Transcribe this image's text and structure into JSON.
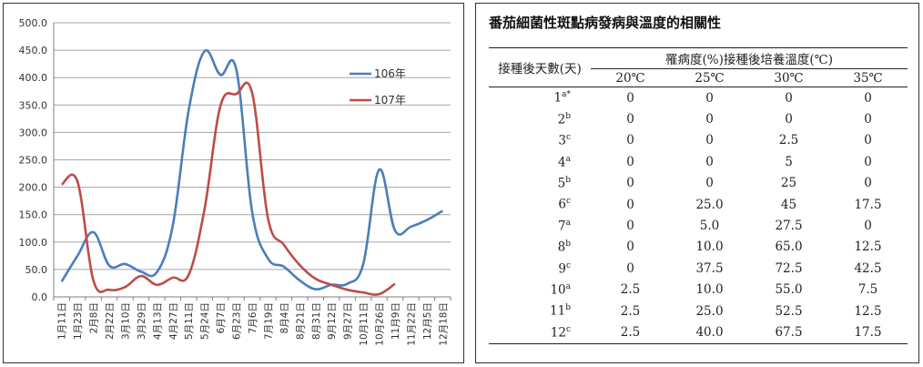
{
  "chart_data": {
    "type": "line",
    "ylim": [
      0,
      500
    ],
    "yticks": [
      "0.0",
      "50.0",
      "100.0",
      "150.0",
      "200.0",
      "250.0",
      "300.0",
      "350.0",
      "400.0",
      "450.0",
      "500.0"
    ],
    "categories": [
      "1月11日",
      "1月23日",
      "2月8日",
      "2月22日",
      "3月10日",
      "3月29日",
      "4月13日",
      "4月27日",
      "5月11日",
      "5月24日",
      "6月7日",
      "6月23日",
      "7月6日",
      "7月19日",
      "8月4日",
      "8月21日",
      "8月31日",
      "9月12日",
      "9月27日",
      "10月11日",
      "10月26日",
      "11月9日",
      "11月22日",
      "12月5日",
      "12月18日"
    ],
    "grid": true,
    "legend_position": "right",
    "series": [
      {
        "name": "106年",
        "color": "#4a7ebb",
        "values": [
          28,
          75,
          118,
          57,
          60,
          46,
          45,
          130,
          340,
          448,
          405,
          415,
          155,
          70,
          55,
          30,
          14,
          22,
          24,
          60,
          232,
          121,
          128,
          140,
          157
        ]
      },
      {
        "name": "107年",
        "color": "#be4b48",
        "values": [
          205,
          210,
          30,
          13,
          18,
          38,
          22,
          35,
          40,
          160,
          348,
          370,
          372,
          143,
          95,
          58,
          33,
          22,
          13,
          8,
          5,
          24,
          null,
          null,
          null
        ]
      }
    ]
  },
  "table": {
    "title": "番茄細菌性斑點病發病與溫度的相關性",
    "row_header": "接種後天數(天)",
    "group_header": "罹病度(%)接種後培養溫度(℃)",
    "temps": [
      "20℃",
      "25℃",
      "30℃",
      "35℃"
    ],
    "rows": [
      {
        "day": "1",
        "sup": "a*",
        "vals": [
          "0",
          "0",
          "0",
          "0"
        ]
      },
      {
        "day": "2",
        "sup": "b",
        "vals": [
          "0",
          "0",
          "0",
          "0"
        ]
      },
      {
        "day": "3",
        "sup": "c",
        "vals": [
          "0",
          "0",
          "2.5",
          "0"
        ]
      },
      {
        "day": "4",
        "sup": "a",
        "vals": [
          "0",
          "0",
          "5",
          "0"
        ]
      },
      {
        "day": "5",
        "sup": "b",
        "vals": [
          "0",
          "0",
          "25",
          "0"
        ]
      },
      {
        "day": "6",
        "sup": "c",
        "vals": [
          "0",
          "25.0",
          "45",
          "17.5"
        ]
      },
      {
        "day": "7",
        "sup": "a",
        "vals": [
          "0",
          "5.0",
          "27.5",
          "0"
        ]
      },
      {
        "day": "8",
        "sup": "b",
        "vals": [
          "0",
          "10.0",
          "65.0",
          "12.5"
        ]
      },
      {
        "day": "9",
        "sup": "c",
        "vals": [
          "0",
          "37.5",
          "72.5",
          "42.5"
        ]
      },
      {
        "day": "10",
        "sup": "a",
        "vals": [
          "2.5",
          "10.0",
          "55.0",
          "7.5"
        ]
      },
      {
        "day": "11",
        "sup": "b",
        "vals": [
          "2.5",
          "25.0",
          "52.5",
          "12.5"
        ]
      },
      {
        "day": "12",
        "sup": "c",
        "vals": [
          "2.5",
          "40.0",
          "67.5",
          "17.5"
        ]
      }
    ]
  }
}
